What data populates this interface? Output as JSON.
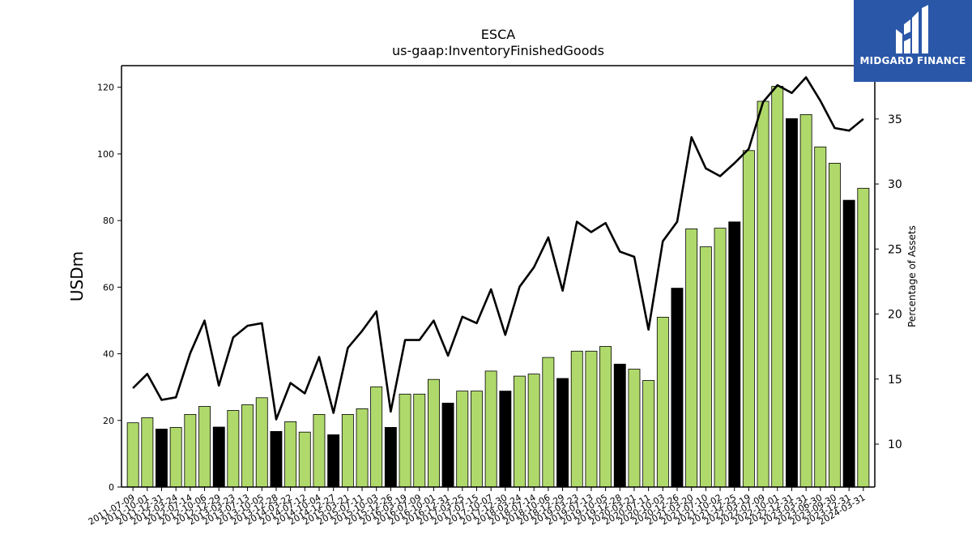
{
  "chart_data": {
    "type": "bar",
    "title": "ESCA",
    "subtitle": "us-gaap:InventoryFinishedGoods",
    "ylabel": "USDm",
    "y2label": "Percentage of Assets",
    "ylim": [
      0,
      126.5
    ],
    "y2lim": [
      6.7,
      39.1
    ],
    "yticks": [
      0,
      20,
      40,
      60,
      80,
      100,
      120
    ],
    "y2ticks": [
      10,
      15,
      20,
      25,
      30,
      35
    ],
    "colors": {
      "q": "#b0d96b",
      "fy": "#000000",
      "line": "#000000"
    },
    "categories": [
      "2011-07-09",
      "2011-10-01",
      "2011-12-31",
      "2012-03-24",
      "2012-07-14",
      "2012-10-06",
      "2012-12-29",
      "2013-03-23",
      "2013-07-13",
      "2013-10-05",
      "2013-12-28",
      "2014-03-22",
      "2014-07-12",
      "2014-10-04",
      "2014-12-27",
      "2015-03-21",
      "2015-07-11",
      "2015-10-03",
      "2015-12-26",
      "2016-03-19",
      "2016-07-09",
      "2016-10-01",
      "2016-12-31",
      "2017-03-25",
      "2017-07-15",
      "2017-10-07",
      "2017-12-30",
      "2018-03-24",
      "2018-07-14",
      "2018-10-06",
      "2018-12-29",
      "2019-03-23",
      "2019-07-13",
      "2019-10-05",
      "2019-12-28",
      "2020-03-21",
      "2020-07-11",
      "2020-10-03",
      "2020-12-26",
      "2021-03-20",
      "2021-07-10",
      "2021-10-02",
      "2021-12-25",
      "2022-03-19",
      "2022-07-09",
      "2022-10-01",
      "2022-12-31",
      "2023-03-31",
      "2023-06-30",
      "2023-09-30",
      "2023-12-31",
      "2024-03-31"
    ],
    "tick_labels": [
      "2011-07-09",
      "2011-10-01",
      "2011-12-31",
      "2012-03-24",
      "2012-07-14",
      "2012-10-06",
      "2012-12-29",
      "2013-03-23",
      "2013-07-13",
      "2013-10-05",
      "2013-12-28",
      "2014-03-22",
      "2014-07-12",
      "2014-10-04",
      "2014-12-27",
      "2015-03-21",
      "2015-07-11",
      "2015-10-03",
      "2015-12-26",
      "2016-03-19",
      "2016-07-09",
      "2016-10-01",
      "2016-12-31",
      "2017-03-25",
      "2017-07-15",
      "2017-10-07",
      "2017-12-30",
      "2018-03-24",
      "2018-07-14",
      "2018-10-06",
      "2018-12-29",
      "2019-03-23",
      "2019-07-13",
      "2019-10-05",
      "2019-12-28",
      "2020-03-21",
      "2020-07-11",
      "2020-10-03",
      "2020-12-26",
      "2021-03-20",
      "2021-07-10",
      "2021-10-02",
      "2021-12-25",
      "2022-03-19",
      "2022-07-09",
      "2022-10-01",
      "2022-12-31",
      "2023-03-31",
      "2023-06-30",
      "2023-09-30",
      "2023-12-31",
      "2024-03-31"
    ],
    "values": [
      19.3,
      20.8,
      17.4,
      17.9,
      21.8,
      24.2,
      18.0,
      23.0,
      24.7,
      26.8,
      16.7,
      19.6,
      16.5,
      21.8,
      15.7,
      21.8,
      23.5,
      30.1,
      17.9,
      27.9,
      27.9,
      32.3,
      25.2,
      28.8,
      28.8,
      34.8,
      28.8,
      33.3,
      33.9,
      38.9,
      32.6,
      40.8,
      40.8,
      42.2,
      36.9,
      35.4,
      32.0,
      51.0,
      59.7,
      77.5,
      72.1,
      77.7,
      79.6,
      101.0,
      115.8,
      120.3,
      110.6,
      111.8,
      102.1,
      97.2,
      86.1,
      89.7
    ],
    "fiscal_year_end": [
      false,
      false,
      true,
      false,
      false,
      false,
      true,
      false,
      false,
      false,
      true,
      false,
      false,
      false,
      true,
      false,
      false,
      false,
      true,
      false,
      false,
      false,
      true,
      false,
      false,
      false,
      true,
      false,
      false,
      false,
      true,
      false,
      false,
      false,
      true,
      false,
      false,
      false,
      true,
      false,
      false,
      false,
      true,
      false,
      false,
      false,
      true,
      false,
      false,
      false,
      true,
      false
    ],
    "pct_of_assets": [
      14.3,
      15.4,
      13.4,
      13.6,
      17.0,
      19.5,
      14.5,
      18.2,
      19.1,
      19.3,
      11.9,
      14.7,
      13.9,
      16.7,
      12.4,
      17.4,
      18.7,
      20.2,
      12.5,
      18.0,
      18.0,
      19.5,
      16.8,
      19.8,
      19.3,
      21.9,
      18.4,
      22.1,
      23.6,
      25.9,
      21.8,
      27.1,
      26.3,
      27.0,
      24.8,
      24.4,
      18.8,
      25.6,
      27.1,
      33.6,
      31.2,
      30.6,
      31.6,
      32.7,
      36.3,
      37.6,
      37.0,
      38.2,
      36.4,
      34.3,
      34.1,
      35.0
    ]
  },
  "logo": {
    "text": "MIDGARD FINANCE"
  }
}
